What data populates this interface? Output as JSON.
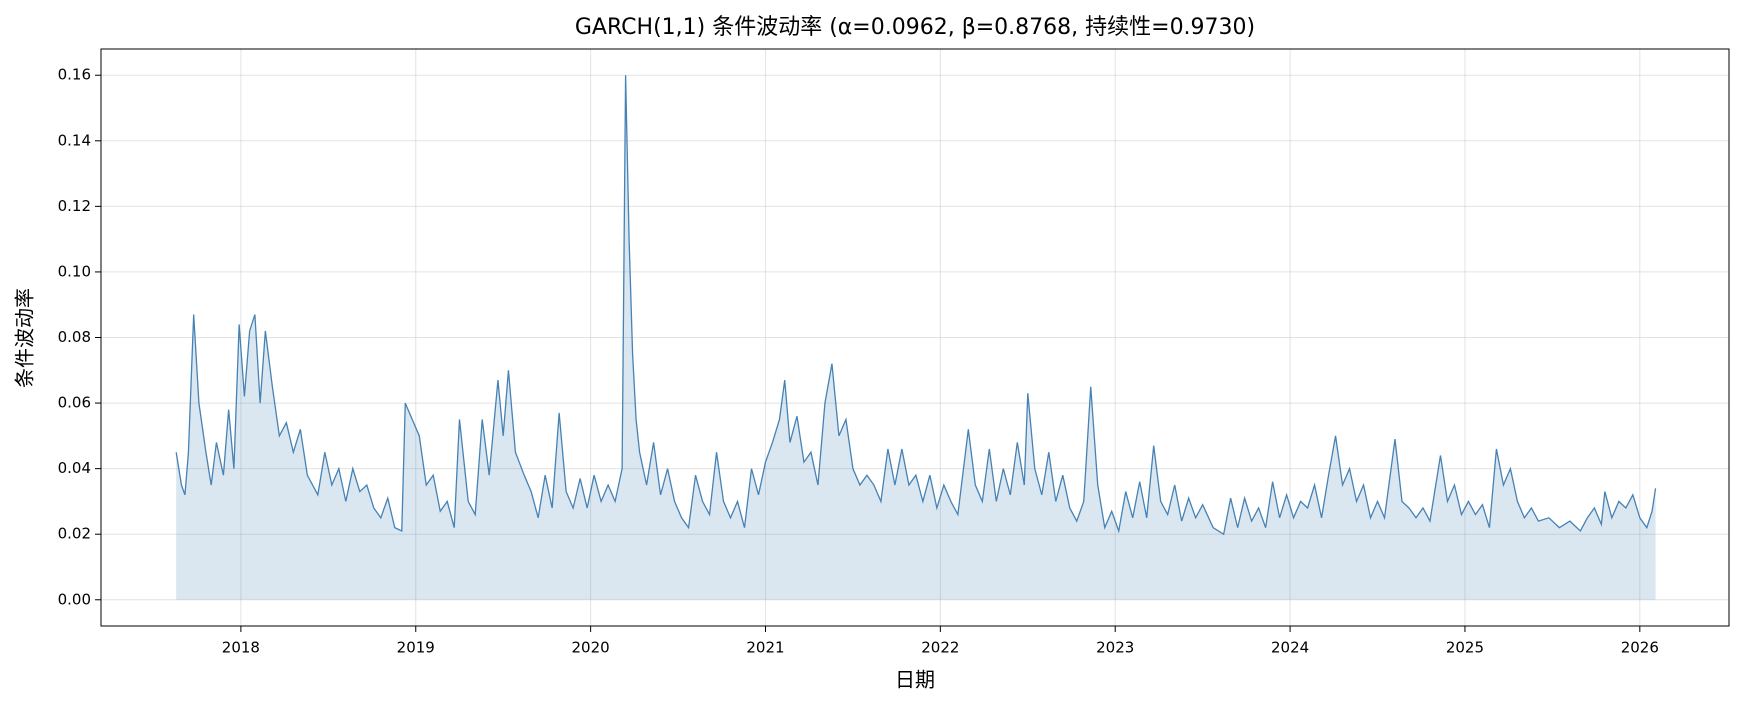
{
  "chart_data": {
    "type": "area",
    "title": "GARCH(1,1) 条件波动率  (α=0.0962, β=0.8768, 持续性=0.9730)",
    "x_label": "日期",
    "y_label": "条件波动率",
    "line_color": "#4682b4",
    "fill_color": "#4682b4",
    "fill_opacity": 0.2,
    "grid": true,
    "xlim": [
      2017.2,
      2026.51
    ],
    "xticks": [
      2018,
      2019,
      2020,
      2021,
      2022,
      2023,
      2024,
      2025,
      2026
    ],
    "ylim": [
      -0.008,
      0.168
    ],
    "yticks": [
      {
        "value": 0,
        "label": "0.00"
      },
      0.02,
      0.04,
      0.06,
      0.08,
      {
        "value": 0.1,
        "label": "0.10"
      },
      0.12,
      0.14,
      0.16
    ],
    "x": [
      2017.63,
      2017.66,
      2017.68,
      2017.7,
      2017.73,
      2017.76,
      2017.8,
      2017.83,
      2017.86,
      2017.9,
      2017.93,
      2017.96,
      2017.99,
      2018.02,
      2018.05,
      2018.08,
      2018.11,
      2018.14,
      2018.18,
      2018.22,
      2018.26,
      2018.3,
      2018.34,
      2018.38,
      2018.44,
      2018.48,
      2018.52,
      2018.56,
      2018.6,
      2018.64,
      2018.68,
      2018.72,
      2018.76,
      2018.8,
      2018.84,
      2018.88,
      2018.92,
      2018.94,
      2018.98,
      2019.02,
      2019.06,
      2019.1,
      2019.14,
      2019.18,
      2019.22,
      2019.25,
      2019.3,
      2019.34,
      2019.38,
      2019.42,
      2019.47,
      2019.5,
      2019.53,
      2019.57,
      2019.62,
      2019.66,
      2019.7,
      2019.74,
      2019.78,
      2019.82,
      2019.86,
      2019.9,
      2019.94,
      2019.98,
      2020.02,
      2020.06,
      2020.1,
      2020.14,
      2020.18,
      2020.2,
      2020.22,
      2020.24,
      2020.26,
      2020.28,
      2020.32,
      2020.36,
      2020.4,
      2020.44,
      2020.48,
      2020.52,
      2020.56,
      2020.6,
      2020.64,
      2020.68,
      2020.72,
      2020.76,
      2020.8,
      2020.84,
      2020.88,
      2020.92,
      2020.96,
      2021.0,
      2021.04,
      2021.08,
      2021.11,
      2021.14,
      2021.18,
      2021.22,
      2021.26,
      2021.3,
      2021.34,
      2021.38,
      2021.42,
      2021.46,
      2021.5,
      2021.54,
      2021.58,
      2021.62,
      2021.66,
      2021.7,
      2021.74,
      2021.78,
      2021.82,
      2021.86,
      2021.9,
      2021.94,
      2021.98,
      2022.02,
      2022.06,
      2022.1,
      2022.16,
      2022.2,
      2022.24,
      2022.28,
      2022.32,
      2022.36,
      2022.4,
      2022.44,
      2022.48,
      2022.5,
      2022.54,
      2022.58,
      2022.62,
      2022.66,
      2022.7,
      2022.74,
      2022.78,
      2022.82,
      2022.86,
      2022.9,
      2022.94,
      2022.98,
      2023.02,
      2023.06,
      2023.1,
      2023.14,
      2023.18,
      2023.22,
      2023.26,
      2023.3,
      2023.34,
      2023.38,
      2023.42,
      2023.46,
      2023.5,
      2023.56,
      2023.62,
      2023.66,
      2023.7,
      2023.74,
      2023.78,
      2023.82,
      2023.86,
      2023.9,
      2023.94,
      2023.98,
      2024.02,
      2024.06,
      2024.1,
      2024.14,
      2024.18,
      2024.22,
      2024.26,
      2024.3,
      2024.34,
      2024.38,
      2024.42,
      2024.46,
      2024.5,
      2024.54,
      2024.6,
      2024.64,
      2024.68,
      2024.72,
      2024.76,
      2024.8,
      2024.86,
      2024.9,
      2024.94,
      2024.98,
      2025.02,
      2025.06,
      2025.1,
      2025.14,
      2025.18,
      2025.22,
      2025.26,
      2025.3,
      2025.34,
      2025.38,
      2025.42,
      2025.48,
      2025.54,
      2025.6,
      2025.66,
      2025.7,
      2025.74,
      2025.78,
      2025.8,
      2025.84,
      2025.88,
      2025.92,
      2025.96,
      2026.0,
      2026.04,
      2026.07,
      2026.09
    ],
    "values": [
      0.045,
      0.035,
      0.032,
      0.045,
      0.087,
      0.06,
      0.045,
      0.035,
      0.048,
      0.038,
      0.058,
      0.04,
      0.084,
      0.062,
      0.082,
      0.087,
      0.06,
      0.082,
      0.065,
      0.05,
      0.054,
      0.045,
      0.052,
      0.038,
      0.032,
      0.045,
      0.035,
      0.04,
      0.03,
      0.04,
      0.033,
      0.035,
      0.028,
      0.025,
      0.031,
      0.022,
      0.021,
      0.06,
      0.055,
      0.05,
      0.035,
      0.038,
      0.027,
      0.03,
      0.022,
      0.055,
      0.03,
      0.026,
      0.055,
      0.038,
      0.067,
      0.05,
      0.07,
      0.045,
      0.038,
      0.033,
      0.025,
      0.038,
      0.028,
      0.057,
      0.033,
      0.028,
      0.037,
      0.028,
      0.038,
      0.03,
      0.035,
      0.03,
      0.04,
      0.16,
      0.11,
      0.075,
      0.055,
      0.045,
      0.035,
      0.048,
      0.032,
      0.04,
      0.03,
      0.025,
      0.022,
      0.038,
      0.03,
      0.026,
      0.045,
      0.03,
      0.025,
      0.03,
      0.022,
      0.04,
      0.032,
      0.042,
      0.048,
      0.055,
      0.067,
      0.048,
      0.056,
      0.042,
      0.045,
      0.035,
      0.06,
      0.072,
      0.05,
      0.055,
      0.04,
      0.035,
      0.038,
      0.035,
      0.03,
      0.046,
      0.035,
      0.046,
      0.035,
      0.038,
      0.03,
      0.038,
      0.028,
      0.035,
      0.03,
      0.026,
      0.052,
      0.035,
      0.03,
      0.046,
      0.03,
      0.04,
      0.032,
      0.048,
      0.035,
      0.063,
      0.04,
      0.032,
      0.045,
      0.03,
      0.038,
      0.028,
      0.024,
      0.03,
      0.065,
      0.035,
      0.022,
      0.027,
      0.021,
      0.033,
      0.025,
      0.036,
      0.025,
      0.047,
      0.03,
      0.026,
      0.035,
      0.024,
      0.031,
      0.025,
      0.029,
      0.022,
      0.02,
      0.031,
      0.022,
      0.031,
      0.024,
      0.028,
      0.022,
      0.036,
      0.025,
      0.032,
      0.025,
      0.03,
      0.028,
      0.035,
      0.025,
      0.038,
      0.05,
      0.035,
      0.04,
      0.03,
      0.035,
      0.025,
      0.03,
      0.025,
      0.049,
      0.03,
      0.028,
      0.025,
      0.028,
      0.024,
      0.044,
      0.03,
      0.035,
      0.026,
      0.03,
      0.026,
      0.029,
      0.022,
      0.046,
      0.035,
      0.04,
      0.03,
      0.025,
      0.028,
      0.024,
      0.025,
      0.022,
      0.024,
      0.021,
      0.025,
      0.028,
      0.023,
      0.033,
      0.025,
      0.03,
      0.028,
      0.032,
      0.025,
      0.022,
      0.027,
      0.034
    ]
  }
}
